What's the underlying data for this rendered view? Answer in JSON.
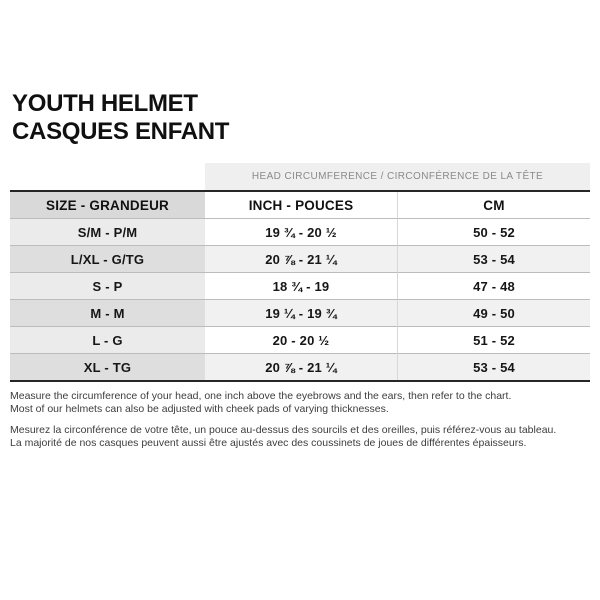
{
  "title": {
    "line1": "YOUTH HELMET",
    "line2": "CASQUES ENFANT"
  },
  "table": {
    "span_header": "HEAD CIRCUMFERENCE / CIRCONFÉRENCE DE LA TÊTE",
    "columns": {
      "size": "SIZE - GRANDEUR",
      "inch": "INCH - POUCES",
      "cm": "CM"
    },
    "rows": [
      {
        "size": "S/M - P/M",
        "inch": "19 ¾ - 20 ½",
        "cm": "50 - 52"
      },
      {
        "size": "L/XL - G/TG",
        "inch": "20 ⅞ - 21 ¼",
        "cm": "53 - 54"
      },
      {
        "size": "S - P",
        "inch": "18 ¾ - 19",
        "cm": "47 - 48"
      },
      {
        "size": "M - M",
        "inch": "19 ¼ - 19 ¾",
        "cm": "49 - 50"
      },
      {
        "size": "L - G",
        "inch": "20 - 20 ½",
        "cm": "51 - 52"
      },
      {
        "size": "XL - TG",
        "inch": "20 ⅞ - 21 ¼",
        "cm": "53 - 54"
      }
    ]
  },
  "notes": {
    "en": [
      "Measure the circumference of your head, one inch above the eyebrows and the ears, then refer to the chart.",
      "Most of our helmets can also be adjusted with cheek pads of varying thicknesses."
    ],
    "fr": [
      "Mesurez la circonférence de votre tête, un pouce au-dessus des sourcils et des oreilles, puis référez-vous au tableau.",
      "La majorité de nos casques peuvent aussi être ajustés avec des coussinets de joues de différentes épaisseurs."
    ]
  },
  "colors": {
    "page_bg": "#ffffff",
    "span_header_bg": "#efefef",
    "span_header_text": "#8a8a8a",
    "size_col_header_bg": "#d9d9d9",
    "size_col_light_bg": "#ebebeb",
    "size_col_dark_bg": "#dedede",
    "row_stripe_bg": "#f1f1f1",
    "table_border": "#262626",
    "row_divider": "#bcbcbc",
    "text": "#161616"
  }
}
